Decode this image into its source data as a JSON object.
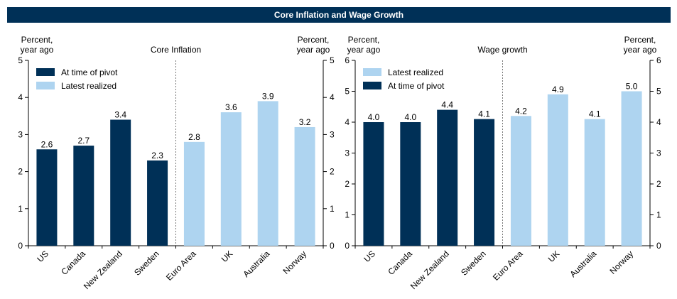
{
  "header": {
    "title": "Core Inflation and Wage Growth"
  },
  "colors": {
    "dark": "#003057",
    "light": "#aed4f0",
    "banner": "#003057"
  },
  "chart_data": [
    {
      "type": "bar",
      "title": "Core Inflation",
      "ylabel_left": [
        "Percent,",
        "year ago"
      ],
      "ylabel_right": [
        "Percent,",
        "year ago"
      ],
      "ylim": [
        0,
        5
      ],
      "yticks": [
        0,
        1,
        2,
        3,
        4,
        5
      ],
      "legend": [
        {
          "label": "At time of pivot",
          "color": "dark"
        },
        {
          "label": "Latest realized",
          "color": "light"
        }
      ],
      "legend_position": "top-left",
      "categories": [
        "US",
        "Canada",
        "New Zealand",
        "Sweden",
        "Euro Area",
        "UK",
        "Australia",
        "Norway"
      ],
      "values": [
        2.6,
        2.7,
        3.4,
        2.3,
        2.8,
        3.6,
        3.9,
        3.2
      ],
      "value_labels": [
        "2.6",
        "2.7",
        "3.4",
        "2.3",
        "2.8",
        "3.6",
        "3.9",
        "3.2"
      ],
      "series_by_bar": [
        "dark",
        "dark",
        "dark",
        "dark",
        "light",
        "light",
        "light",
        "light"
      ],
      "divider_after_index": 3
    },
    {
      "type": "bar",
      "title": "Wage growth",
      "ylabel_left": [
        "Percent,",
        "year ago"
      ],
      "ylabel_right": [
        "Percent,",
        "year ago"
      ],
      "ylim": [
        0,
        6
      ],
      "yticks": [
        0,
        1,
        2,
        3,
        4,
        5,
        6
      ],
      "legend": [
        {
          "label": "Latest realized",
          "color": "light"
        },
        {
          "label": "At time of pivot",
          "color": "dark"
        }
      ],
      "legend_position": "top-left",
      "categories": [
        "US",
        "Canada",
        "New Zealand",
        "Sweden",
        "Euro Area",
        "UK",
        "Australia",
        "Norway"
      ],
      "values": [
        4.0,
        4.0,
        4.4,
        4.1,
        4.2,
        4.9,
        4.1,
        5.0
      ],
      "value_labels": [
        "4.0",
        "4.0",
        "4.4",
        "4.1",
        "4.2",
        "4.9",
        "4.1",
        "5.0"
      ],
      "series_by_bar": [
        "dark",
        "dark",
        "dark",
        "dark",
        "light",
        "light",
        "light",
        "light"
      ],
      "divider_after_index": 3
    }
  ]
}
